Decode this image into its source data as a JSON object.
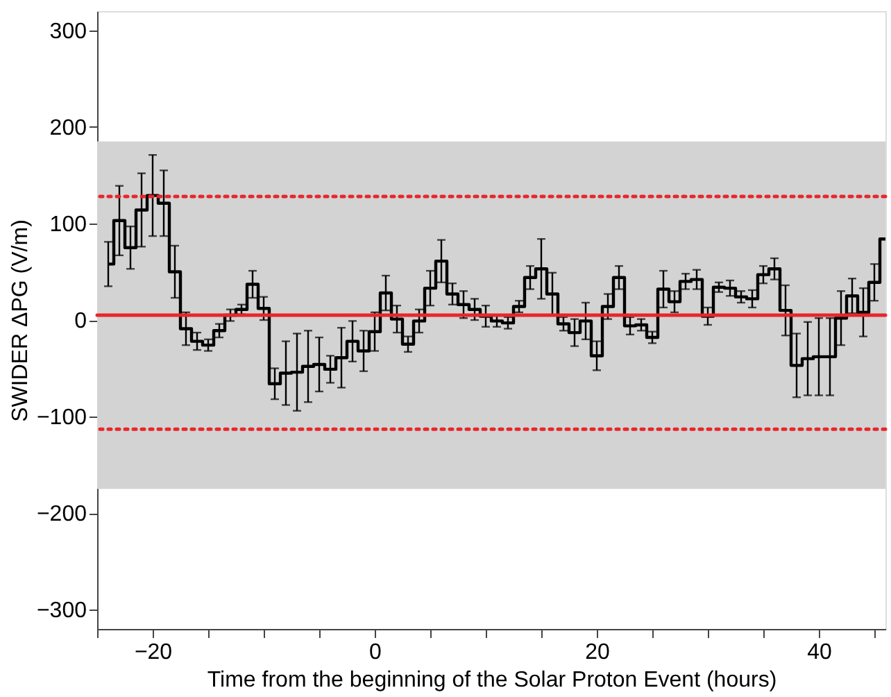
{
  "chart_data": {
    "type": "step",
    "xlabel": "Time from the beginning of the Solar Proton Event (hours)",
    "ylabel": "SWIDER ΔPG (V/m)",
    "x": [
      -24,
      -23,
      -22,
      -21,
      -20,
      -19,
      -18,
      -17,
      -16,
      -15,
      -14,
      -13,
      -12,
      -11,
      -10,
      -9,
      -8,
      -7,
      -6,
      -5,
      -4,
      -3,
      -2,
      -1,
      0,
      1,
      2,
      3,
      4,
      5,
      6,
      7,
      8,
      9,
      10,
      11,
      12,
      13,
      14,
      15,
      16,
      17,
      18,
      19,
      20,
      21,
      22,
      23,
      24,
      25,
      26,
      27,
      28,
      29,
      30,
      31,
      32,
      33,
      34,
      35,
      36,
      37,
      38,
      39,
      40,
      41,
      42,
      43,
      44,
      45,
      46
    ],
    "series": [
      {
        "color": "#000000",
        "values": [
          58,
          103,
          75,
          114,
          129,
          121,
          50,
          -9,
          -22,
          -26,
          -11,
          5,
          11,
          37,
          12,
          -66,
          -55,
          -54,
          -48,
          -46,
          -51,
          -39,
          -22,
          -32,
          -12,
          28,
          1,
          -25,
          -1,
          33,
          61,
          27,
          16,
          11,
          4,
          -1,
          -3,
          14,
          44,
          53,
          27,
          -4,
          -13,
          -1,
          -37,
          14,
          44,
          -6,
          -5,
          -18,
          32,
          19,
          40,
          42,
          4,
          34,
          33,
          24,
          22,
          47,
          53,
          10,
          -47,
          -40,
          -38,
          -38,
          2,
          25,
          8,
          39,
          84
        ],
        "errors": [
          23,
          36,
          22,
          38,
          42,
          34,
          27,
          17,
          9,
          6,
          7,
          6,
          5,
          14,
          12,
          16,
          33,
          40,
          37,
          28,
          14,
          31,
          21,
          21,
          20,
          18,
          14,
          8,
          12,
          18,
          22,
          11,
          14,
          11,
          11,
          6,
          6,
          6,
          12,
          31,
          22,
          7,
          14,
          19,
          15,
          13,
          12,
          9,
          6,
          6,
          19,
          11,
          8,
          10,
          9,
          5,
          8,
          6,
          9,
          9,
          11,
          26,
          33,
          38,
          40,
          40,
          28,
          18,
          25,
          19,
          null
        ]
      }
    ],
    "xlim": [
      -25,
      46
    ],
    "xticks": [
      {
        "value": -25,
        "label": null
      },
      -20,
      {
        "value": -15,
        "label": null
      },
      {
        "value": -10,
        "label": null
      },
      {
        "value": -5,
        "label": null
      },
      0,
      {
        "value": 5,
        "label": null
      },
      {
        "value": 10,
        "label": null
      },
      {
        "value": 15,
        "label": null
      },
      20,
      {
        "value": 25,
        "label": null
      },
      {
        "value": 30,
        "label": null
      },
      {
        "value": 35,
        "label": null
      },
      40,
      {
        "value": 45,
        "label": null
      }
    ],
    "ylim": [
      -320,
      320
    ],
    "yticks": [
      -300,
      -200,
      -100,
      0,
      100,
      200,
      300
    ],
    "grid": false,
    "bands": [
      {
        "axis": "y",
        "from": -175,
        "to": 185,
        "color": "#d3d3d3"
      }
    ],
    "ref_lines": [
      {
        "axis": "y",
        "value": 5,
        "color": "#e8262a",
        "line_style": "solid"
      },
      {
        "axis": "y",
        "value": 128,
        "color": "#e8262a",
        "line_style": "dotted"
      },
      {
        "axis": "y",
        "value": -113,
        "color": "#e8262a",
        "line_style": "dotted"
      }
    ]
  }
}
